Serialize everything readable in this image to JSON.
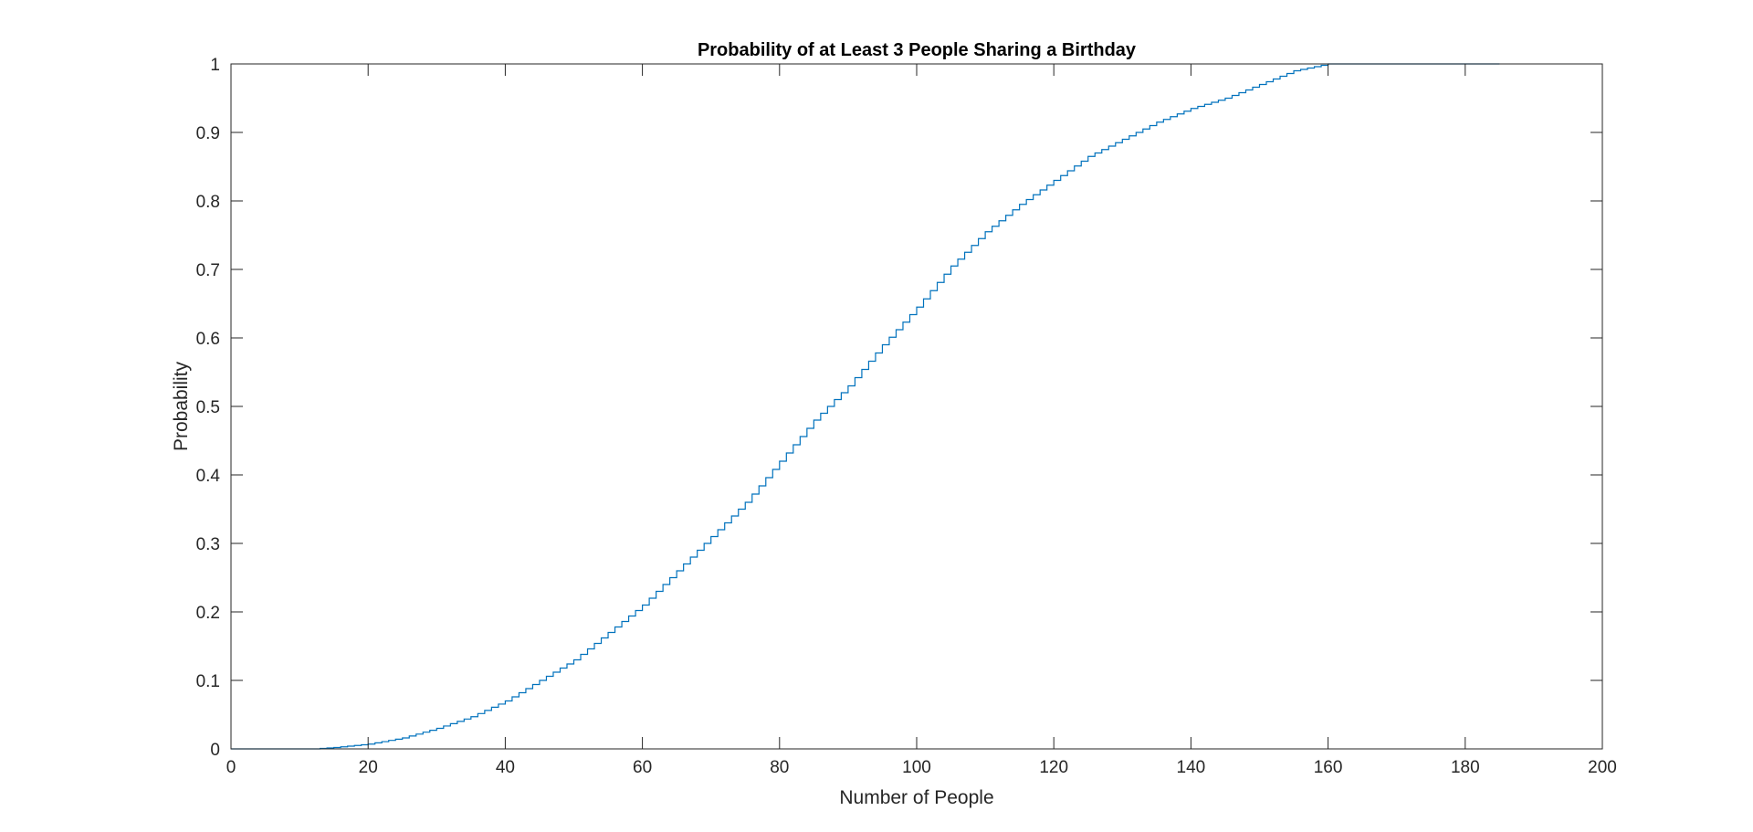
{
  "chart_data": {
    "type": "line",
    "step": true,
    "title": "Probability of at Least 3 People Sharing a Birthday",
    "xlabel": "Number of People",
    "ylabel": "Probability",
    "xlim": [
      0,
      200
    ],
    "ylim": [
      0,
      1
    ],
    "xticks": [
      0,
      20,
      40,
      60,
      80,
      100,
      120,
      140,
      160,
      180,
      200
    ],
    "yticks": [
      0,
      0.1,
      0.2,
      0.3,
      0.4,
      0.5,
      0.6,
      0.7,
      0.8,
      0.9,
      1
    ],
    "xtick_labels": [
      "0",
      "20",
      "40",
      "60",
      "80",
      "100",
      "120",
      "140",
      "160",
      "180",
      "200"
    ],
    "ytick_labels": [
      "0",
      "0.1",
      "0.2",
      "0.3",
      "0.4",
      "0.5",
      "0.6",
      "0.7",
      "0.8",
      "0.9",
      "1"
    ],
    "grid": false,
    "box": true,
    "line_color": "#0072BD",
    "axis_color": "#262626",
    "series": [
      {
        "x": [
          0,
          12,
          15,
          20,
          25,
          30,
          35,
          40,
          45,
          50,
          55,
          60,
          65,
          70,
          75,
          80,
          85,
          90,
          95,
          100,
          105,
          110,
          115,
          120,
          125,
          130,
          135,
          140,
          145,
          150,
          155,
          160,
          165,
          170,
          175,
          180,
          185
        ],
        "values": [
          0,
          0,
          0.002,
          0.007,
          0.016,
          0.03,
          0.047,
          0.07,
          0.1,
          0.13,
          0.17,
          0.21,
          0.26,
          0.31,
          0.36,
          0.42,
          0.48,
          0.53,
          0.59,
          0.645,
          0.705,
          0.755,
          0.795,
          0.83,
          0.865,
          0.89,
          0.915,
          0.935,
          0.95,
          0.97,
          0.99,
          1,
          1,
          1,
          1,
          1,
          1
        ]
      }
    ]
  }
}
